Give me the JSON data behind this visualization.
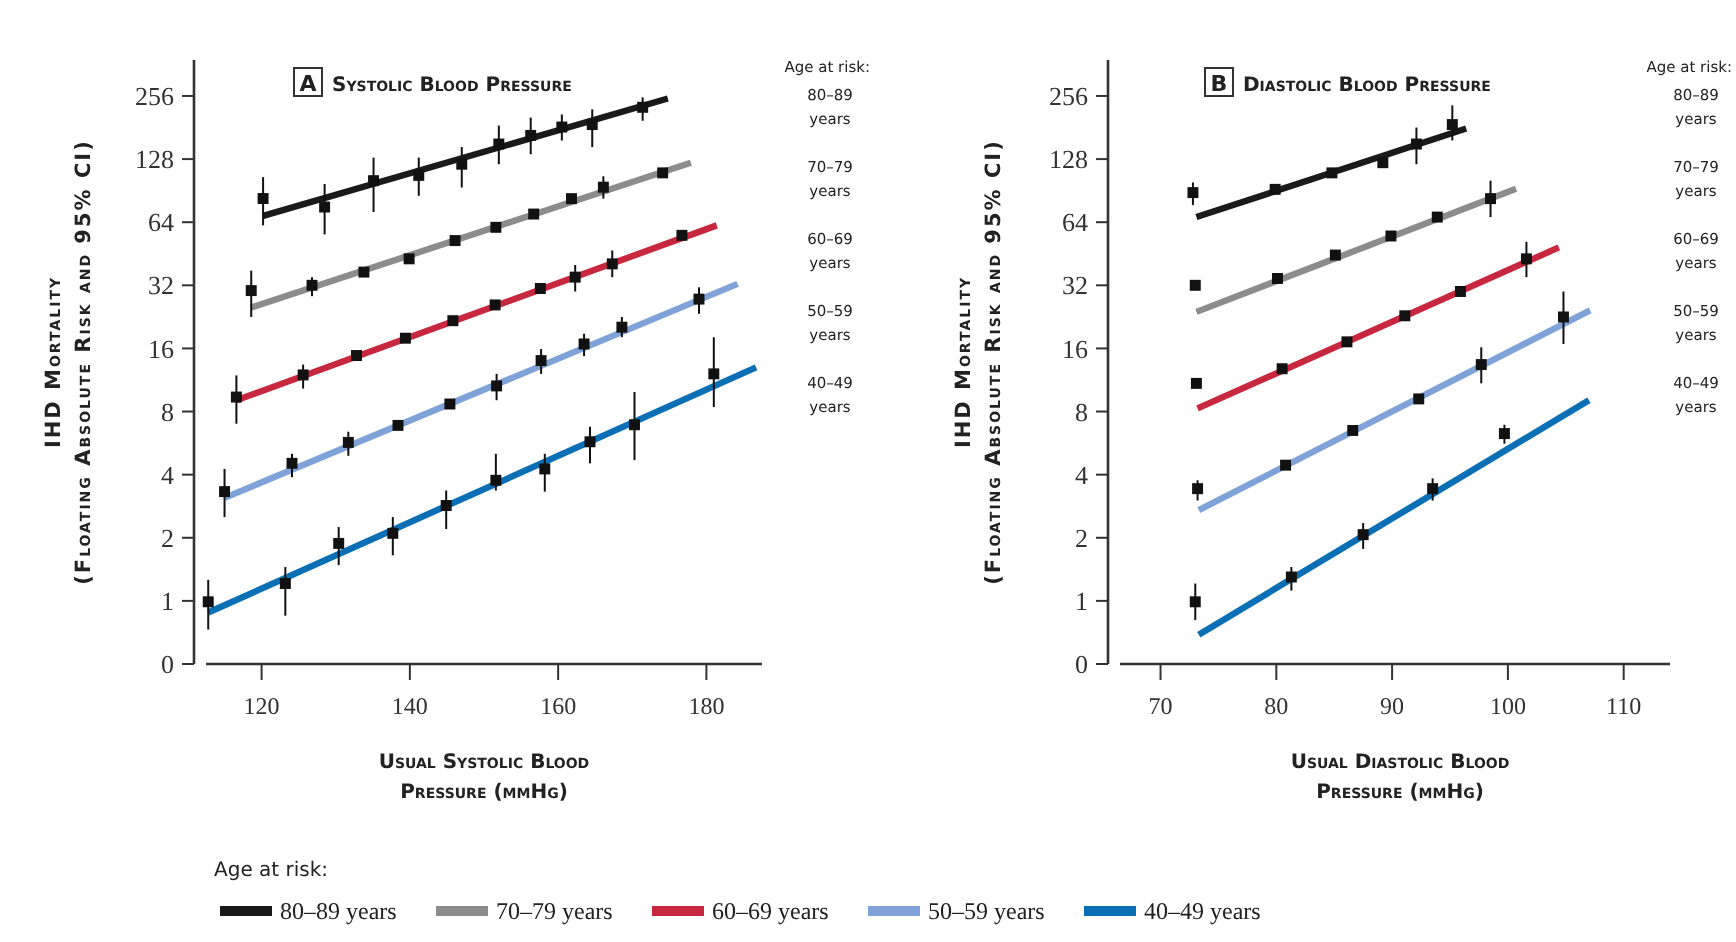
{
  "chart_data": [
    {
      "type": "scatter",
      "title": "Systolic Blood Pressure",
      "annotations": [
        "A"
      ],
      "xlabel": "Usual Systolic Blood\nPressure (mmHg)",
      "ylabel": "IHD Mortality\n(Floating Absolute Risk and 95% CI)",
      "legend_title": "Age at risk:",
      "legend": "bottom",
      "log": "y",
      "marker": "square",
      "line_style": "solid",
      "xlim": [
        112.5,
        187.5
      ],
      "xticks": [
        120,
        140,
        160,
        180
      ],
      "ylim": [
        0.5,
        380
      ],
      "yticks": [
        {
          "value": 0.5,
          "label": "0"
        },
        1,
        2,
        4,
        8,
        16,
        32,
        64,
        128,
        256
      ],
      "series": [
        {
          "type": "line",
          "marker": "none",
          "name": "80–89 years",
          "color": "#1a1a1a",
          "x": [
            120.2,
            174.8
          ],
          "values": [
            68.6,
            249
          ]
        },
        {
          "color": "#111111",
          "x": [
            120.2,
            128.5,
            135.1,
            141.2,
            147.0,
            152.0,
            156.3,
            160.5,
            164.6,
            171.4
          ],
          "values": [
            83,
            75.6,
            101,
            107,
            121,
            151,
            166,
            182,
            187,
            226
          ],
          "errors": [
            [
              61.8,
              105
            ],
            [
              56,
              97.4
            ],
            [
              71.6,
              130
            ],
            [
              85.5,
              130
            ],
            [
              93.7,
              146
            ],
            [
              121,
              185
            ],
            [
              135,
              202
            ],
            [
              157,
              209
            ],
            [
              146,
              221
            ],
            [
              195,
              252
            ]
          ]
        },
        {
          "type": "line",
          "marker": "none",
          "name": "70–79 years",
          "color": "#8c8c8c",
          "x": [
            118.6,
            177.9
          ],
          "values": [
            25.1,
            123
          ]
        },
        {
          "color": "#111111",
          "x": [
            118.6,
            126.8,
            133.8,
            139.9,
            146.1,
            151.6,
            156.7,
            161.8,
            166.1,
            174.1
          ],
          "values": [
            30.2,
            32,
            37,
            42.8,
            52.3,
            60.5,
            70,
            82.9,
            94,
            110
          ],
          "errors": [
            [
              22.6,
              37.6
            ],
            [
              28.4,
              35
            ],
            null,
            null,
            null,
            null,
            null,
            null,
            [
              82.9,
              106
            ],
            null
          ]
        },
        {
          "type": "line",
          "marker": "none",
          "name": "60–69 years",
          "color": "#c8283f",
          "x": [
            116.6,
            181.4
          ],
          "values": [
            9.06,
            61.8
          ]
        },
        {
          "color": "#111111",
          "x": [
            116.6,
            125.6,
            132.8,
            139.4,
            145.8,
            151.5,
            157.6,
            162.3,
            167.3,
            176.7
          ],
          "values": [
            9.38,
            11.96,
            14.8,
            17.9,
            21.7,
            25.8,
            30.9,
            35,
            40.5,
            55.4
          ],
          "errors": [
            [
              7.0,
              11.9
            ],
            [
              10.3,
              13.4
            ],
            null,
            null,
            null,
            null,
            null,
            [
              29.9,
              40
            ],
            [
              35,
              46.9
            ],
            null
          ]
        },
        {
          "type": "line",
          "marker": "none",
          "name": "50–59 years",
          "color": "#7fa3d9",
          "x": [
            115.0,
            184.2
          ],
          "values": [
            3.1,
            32.5
          ]
        },
        {
          "color": "#111111",
          "x": [
            115.0,
            124.1,
            131.7,
            138.4,
            145.4,
            151.7,
            157.7,
            163.5,
            168.6,
            179.0
          ],
          "values": [
            3.32,
            4.53,
            5.7,
            6.87,
            8.69,
            10.6,
            14.0,
            16.8,
            20.2,
            27.5
          ],
          "errors": [
            [
              2.51,
              4.26
            ],
            [
              3.89,
              5.03
            ],
            [
              4.92,
              6.41
            ],
            null,
            null,
            [
              9.06,
              12.1
            ],
            [
              12.1,
              15.9
            ],
            [
              14.7,
              18.8
            ],
            [
              18.1,
              22.6
            ],
            [
              23.4,
              31.3
            ]
          ]
        },
        {
          "type": "line",
          "marker": "none",
          "name": "40–49 years",
          "color": "#0a6fb4",
          "x": [
            112.8,
            186.7
          ],
          "values": [
            0.88,
            13.0
          ]
        },
        {
          "color": "#111111",
          "x": [
            112.8,
            123.2,
            130.4,
            137.7,
            144.9,
            151.6,
            158.2,
            164.3,
            170.3,
            181.0
          ],
          "values": [
            0.99,
            1.21,
            1.88,
            2.1,
            2.85,
            3.76,
            4.26,
            5.74,
            6.92,
            12.1
          ],
          "errors": [
            [
              0.73,
              1.26
            ],
            [
              0.85,
              1.45
            ],
            [
              1.48,
              2.25
            ],
            [
              1.65,
              2.51
            ],
            [
              2.2,
              3.36
            ],
            [
              3.36,
              5.03
            ],
            [
              3.32,
              5.03
            ],
            [
              4.53,
              6.77
            ],
            [
              4.69,
              9.92
            ],
            [
              8.4,
              18.1
            ]
          ]
        }
      ]
    },
    {
      "type": "scatter",
      "title": "Diastolic Blood Pressure",
      "annotations": [
        "B"
      ],
      "xlabel": "Usual Diastolic Blood\nPressure (mmHg)",
      "ylabel": "IHD Mortality\n(Floating Absolute Risk and 95% CI)",
      "legend_title": "Age at risk:",
      "log": "y",
      "marker": "square",
      "line_style": "solid",
      "xlim": [
        66.5,
        114
      ],
      "xticks": [
        70,
        80,
        90,
        100,
        110
      ],
      "ylim": [
        0.5,
        380
      ],
      "yticks": [
        {
          "value": 0.5,
          "label": "0"
        },
        1,
        2,
        4,
        8,
        16,
        32,
        64,
        128,
        256
      ],
      "series": [
        {
          "type": "line",
          "marker": "none",
          "name": "80–89 years",
          "color": "#1a1a1a",
          "x": [
            73.1,
            96.4
          ],
          "values": [
            67.7,
            179
          ]
        },
        {
          "color": "#111111",
          "x": [
            72.8,
            79.9,
            84.8,
            89.2,
            92.1,
            95.2
          ],
          "values": [
            88.6,
            91.8,
            110,
            123,
            151,
            187
          ],
          "errors": [
            [
              77.2,
              99
            ],
            null,
            null,
            null,
            [
              121,
              181
            ],
            [
              157,
              231
            ]
          ]
        },
        {
          "type": "line",
          "marker": "none",
          "name": "70–79 years",
          "color": "#8c8c8c",
          "x": [
            73.1,
            100.7
          ],
          "values": [
            23.9,
            92.4
          ]
        },
        {
          "color": "#111111",
          "x": [
            73.0,
            80.1,
            85.1,
            89.9,
            93.9,
            98.5
          ],
          "values": [
            32,
            34.5,
            44.6,
            55,
            67.7,
            82.9
          ],
          "errors": [
            null,
            null,
            null,
            null,
            null,
            [
              67.7,
              101
            ]
          ]
        },
        {
          "type": "line",
          "marker": "none",
          "name": "60–69 years",
          "color": "#c8283f",
          "x": [
            73.2,
            104.4
          ],
          "values": [
            8.28,
            48.5
          ]
        },
        {
          "color": "#111111",
          "x": [
            73.1,
            80.5,
            86.1,
            91.1,
            95.9,
            101.6
          ],
          "values": [
            10.9,
            12.8,
            17.2,
            22.9,
            29.9,
            42.8
          ],
          "errors": [
            null,
            null,
            null,
            null,
            null,
            [
              35,
              51.6
            ]
          ]
        },
        {
          "type": "line",
          "marker": "none",
          "name": "50–59 years",
          "color": "#7fa3d9",
          "x": [
            73.3,
            107.1
          ],
          "values": [
            2.71,
            24.3
          ]
        },
        {
          "color": "#111111",
          "x": [
            73.2,
            80.8,
            86.6,
            92.3,
            97.7,
            104.8
          ],
          "values": [
            3.43,
            4.44,
            6.5,
            9.19,
            13.4,
            22.6
          ],
          "errors": [
            [
              3.01,
              3.76
            ],
            null,
            null,
            null,
            [
              10.9,
              16.2
            ],
            [
              16.8,
              29.9
            ]
          ]
        },
        {
          "type": "line",
          "marker": "none",
          "name": "40–49 years",
          "color": "#0a6fb4",
          "x": [
            73.3,
            107
          ],
          "values": [
            0.69,
            9.06
          ]
        },
        {
          "color": "#111111",
          "x": [
            73.0,
            81.3,
            87.5,
            93.5,
            99.7
          ],
          "values": [
            0.99,
            1.3,
            2.07,
            3.43,
            6.28
          ],
          "errors": [
            [
              0.81,
              1.21
            ],
            [
              1.12,
              1.45
            ],
            [
              1.77,
              2.35
            ],
            [
              3.01,
              3.84
            ],
            [
              5.62,
              6.92
            ]
          ]
        }
      ]
    }
  ]
}
